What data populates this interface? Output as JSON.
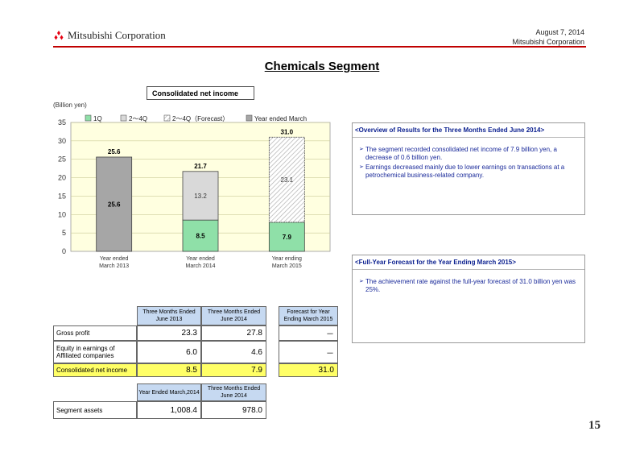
{
  "header": {
    "company": "Mitsubishi Corporation",
    "date": "August 7, 2014",
    "company_small": "Mitsubishi Corporation",
    "title": "Chemicals Segment"
  },
  "chart_label": "Consolidated net income",
  "unit": "(Billion yen)",
  "chart_data": {
    "type": "bar",
    "categories": [
      "Year ended\nMarch 2013",
      "Year ended\nMarch 2014",
      "Year ending\nMarch 2015"
    ],
    "ylim": [
      0,
      35
    ],
    "yticks": [
      0,
      5,
      10,
      15,
      20,
      25,
      30,
      35
    ],
    "legend": [
      "1Q",
      "2～4Q",
      "2～4Q（Forecast）",
      "Year ended March"
    ],
    "legend_position": "top",
    "series": [
      {
        "name": "Year ended March",
        "values": [
          25.6,
          null,
          null
        ]
      },
      {
        "name": "1Q",
        "values": [
          null,
          8.5,
          7.9
        ]
      },
      {
        "name": "2～4Q",
        "values": [
          null,
          13.2,
          null
        ]
      },
      {
        "name": "2～4Q（Forecast）",
        "values": [
          null,
          null,
          23.1
        ]
      }
    ],
    "totals": [
      25.6,
      21.7,
      31.0
    ],
    "colors": {
      "year": "#a6a6a6",
      "q1": "#8fe0a8",
      "q24": "#d9d9d9",
      "forecast_hatch": "#bfbfbf",
      "plot_bg": "#ffffe0"
    }
  },
  "overview": {
    "heading": "<Overview of Results for the Three Months Ended June 2014>",
    "bullets": [
      "The segment recorded consolidated net income of 7.9 billion yen, a decrease of 0.6 billion yen.",
      "Earnings decreased mainly due to lower earnings on transactions at a petrochemical business-related company."
    ]
  },
  "forecast": {
    "heading": "<Full-Year Forecast for the Year Ending March 2015>",
    "bullets": [
      "The achievement rate against the full-year forecast of 31.0 billion yen was 25%."
    ]
  },
  "table1": {
    "headers": [
      "Three Months Ended June 2013",
      "Three Months Ended June 2014",
      "Forecast for Year Ending March 2015"
    ],
    "rows": [
      {
        "label": "Gross profit",
        "v1": "23.3",
        "v2": "27.8",
        "v3": "－"
      },
      {
        "label": "Equity in earnings of Affiliated companies",
        "v1": "6.0",
        "v2": "4.6",
        "v3": "－"
      },
      {
        "label": "Consolidated net income",
        "v1": "8.5",
        "v2": "7.9",
        "v3": "31.0"
      }
    ]
  },
  "table2": {
    "headers": [
      "Year Ended March,2014",
      "Three Months Ended June 2014"
    ],
    "rows": [
      {
        "label": "Segment assets",
        "v1": "1,008.4",
        "v2": "978.0"
      }
    ]
  },
  "page_number": "15"
}
